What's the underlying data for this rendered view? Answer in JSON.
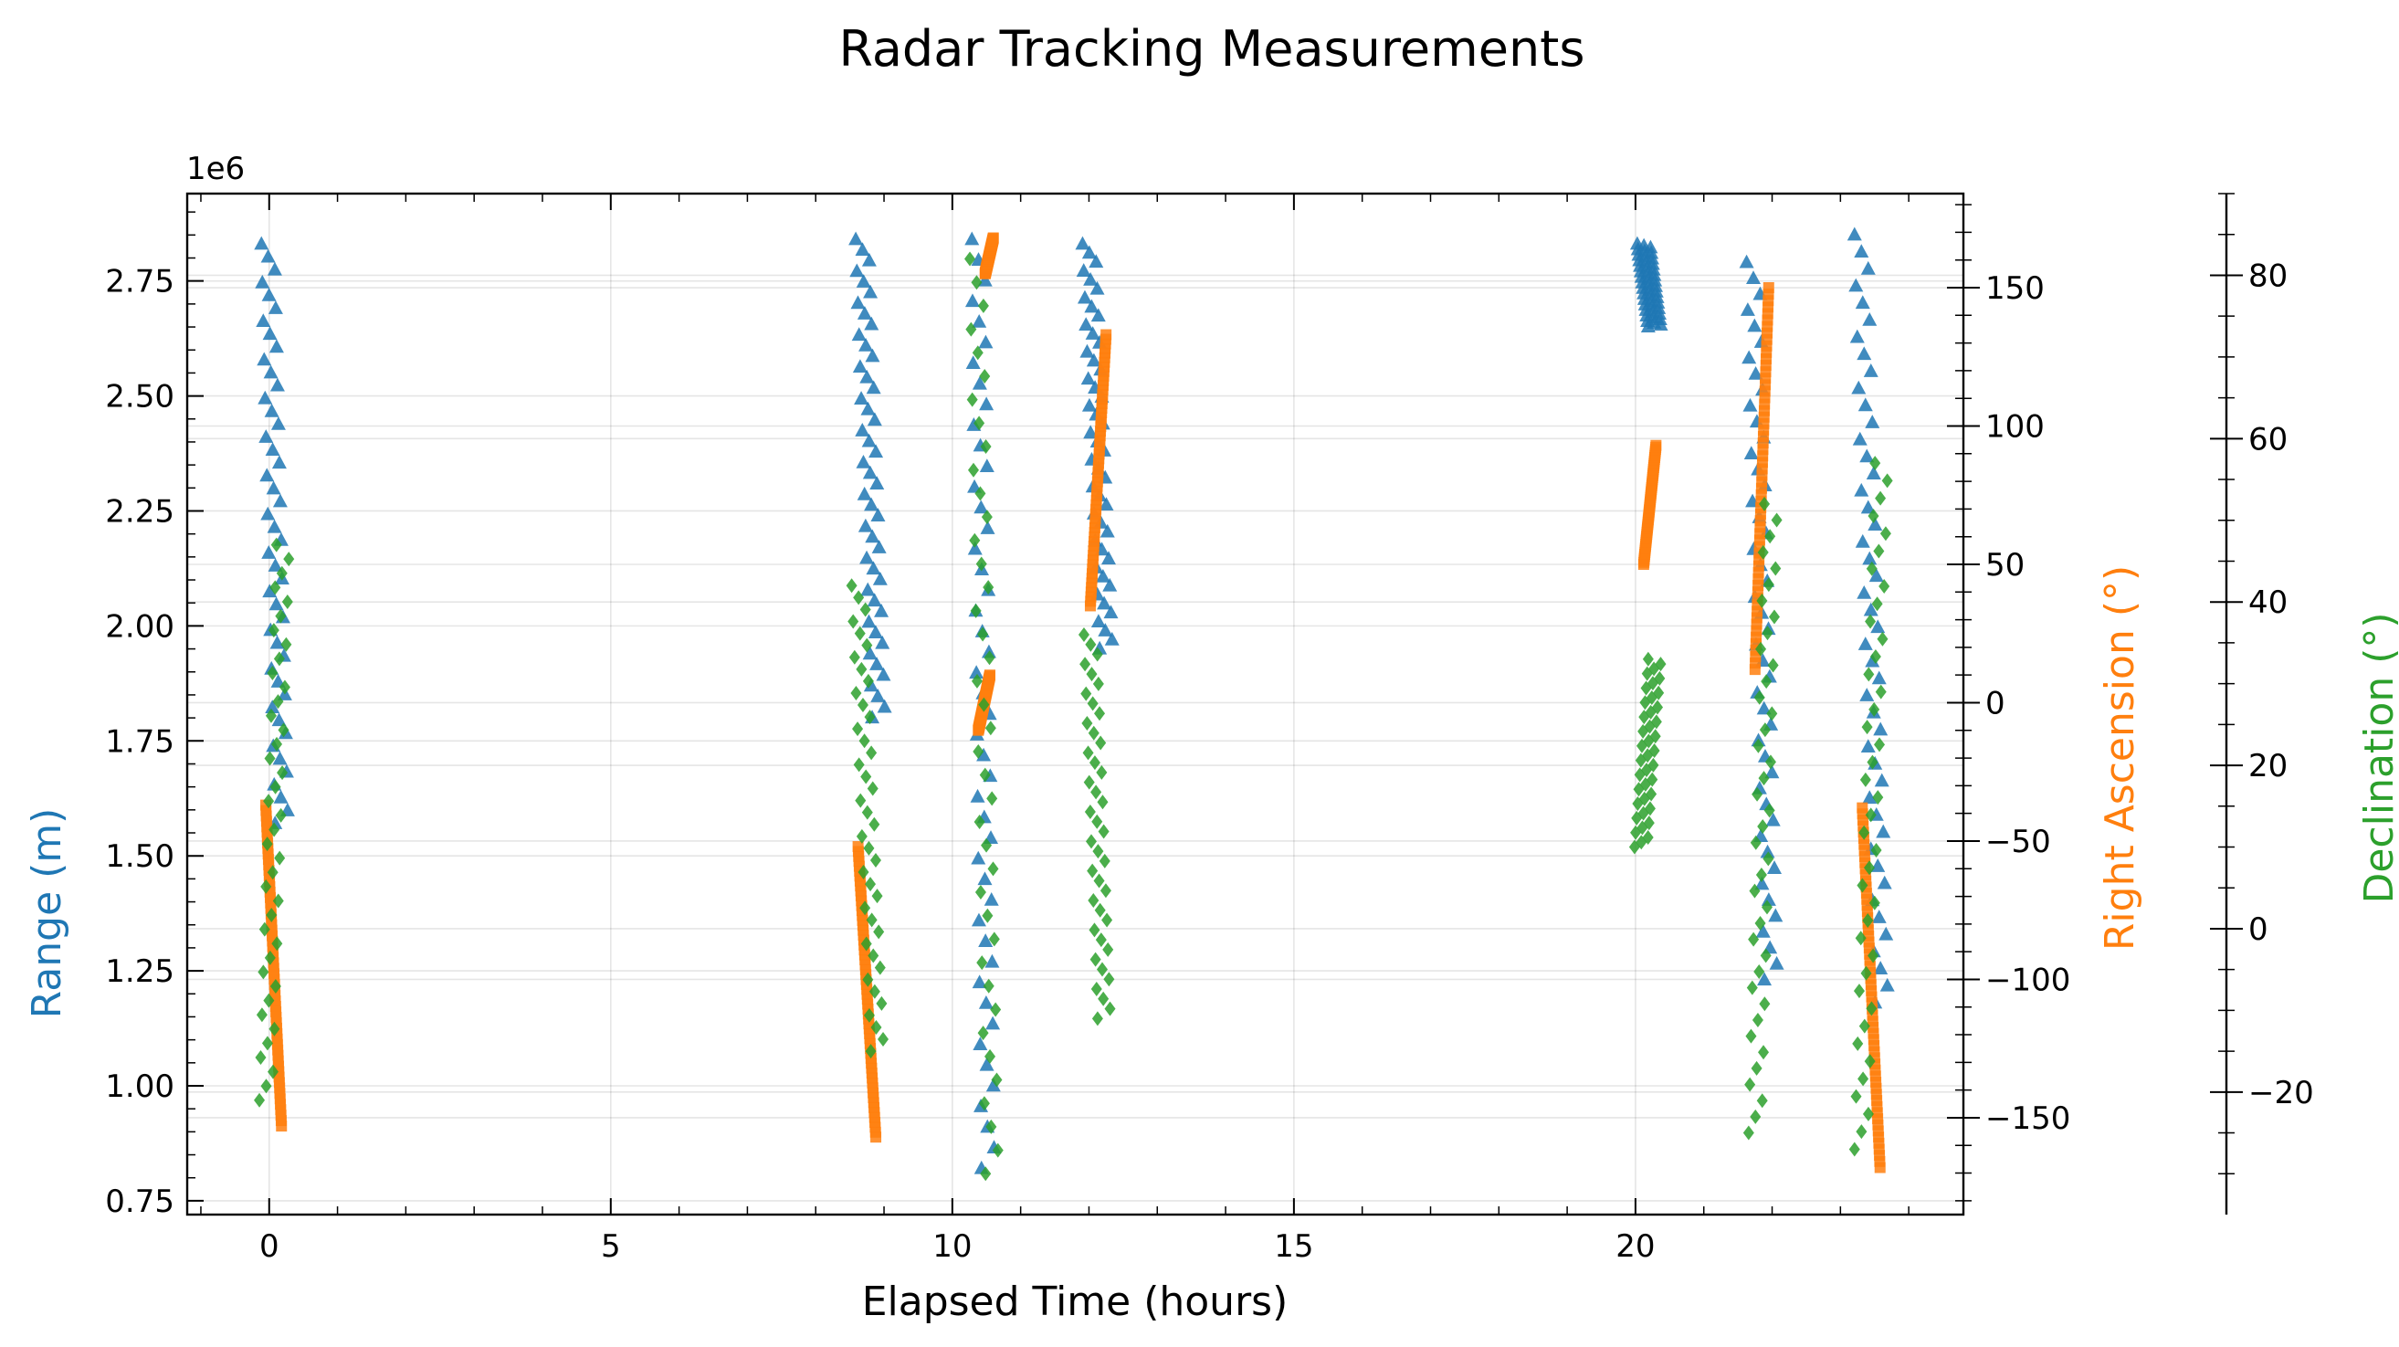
{
  "chart_data": {
    "type": "scatter",
    "title": "Radar Tracking Measurements",
    "xlabel": "Elapsed Time (hours)",
    "xlim": [
      -1.2,
      24.8
    ],
    "x_ticks": [
      "0",
      "5",
      "10",
      "15",
      "20"
    ],
    "x_tick_values": [
      0,
      5,
      10,
      15,
      20
    ],
    "grid": true,
    "axes": {
      "range": {
        "label": "Range (m)",
        "color": "#1f77b4",
        "offset_text": "1e6",
        "lim": [
          0.72,
          2.94
        ],
        "ticks": [
          "0.75",
          "1.00",
          "1.25",
          "1.50",
          "1.75",
          "2.00",
          "2.25",
          "2.50",
          "2.75"
        ],
        "tick_values": [
          0.75,
          1.0,
          1.25,
          1.5,
          1.75,
          2.0,
          2.25,
          2.5,
          2.75
        ]
      },
      "ra": {
        "label": "Right Ascension (°)",
        "color": "#ff7f0e",
        "lim": [
          -185,
          184
        ],
        "ticks": [
          "−150",
          "−100",
          "−50",
          "0",
          "50",
          "100",
          "150"
        ],
        "tick_values": [
          -150,
          -100,
          -50,
          0,
          50,
          100,
          150
        ]
      },
      "dec": {
        "label": "Declination (°)",
        "color": "#2ca02c",
        "lim": [
          -35,
          90
        ],
        "ticks": [
          "−20",
          "0",
          "20",
          "40",
          "60",
          "80"
        ],
        "tick_values": [
          -20,
          0,
          20,
          40,
          60,
          80
        ]
      }
    },
    "series": [
      {
        "axis": "range",
        "marker": "triangle",
        "color": "#1f77b4",
        "n": 46,
        "segments": [
          {
            "x": [
              -0.02,
              0.18
            ],
            "y": [
              2.83,
              1.57
            ]
          },
          {
            "x": [
              8.68,
              8.92
            ],
            "y": [
              2.84,
              1.8
            ]
          },
          {
            "x": [
              10.38,
              10.52
            ],
            "y": [
              2.84,
              0.82
            ]
          },
          {
            "x": [
              12.0,
              12.25
            ],
            "y": [
              2.83,
              1.95
            ]
          },
          {
            "x": [
              20.12,
              20.28
            ],
            "y": [
              2.83,
              2.65
            ]
          },
          {
            "x": [
              21.72,
              21.98
            ],
            "y": [
              2.79,
              1.23
            ]
          },
          {
            "x": [
              23.3,
              23.6
            ],
            "y": [
              2.85,
              1.18
            ]
          }
        ]
      },
      {
        "axis": "ra",
        "marker": "square",
        "color": "#ff7f0e",
        "n": 60,
        "segments": [
          {
            "x": [
              -0.05,
              0.18
            ],
            "y": [
              -37,
              -153
            ]
          },
          {
            "x": [
              8.62,
              8.88
            ],
            "y": [
              -52,
              -157
            ]
          },
          {
            "x": [
              10.38,
              10.55
            ],
            "y": [
              -10,
              10
            ]
          },
          {
            "x": [
              10.48,
              10.6
            ],
            "y": [
              155,
              168
            ]
          },
          {
            "x": [
              12.02,
              12.25
            ],
            "y": [
              35,
              133
            ]
          },
          {
            "x": [
              20.12,
              20.3
            ],
            "y": [
              50,
              93
            ]
          },
          {
            "x": [
              21.75,
              21.95
            ],
            "y": [
              12,
              150
            ]
          },
          {
            "x": [
              23.32,
              23.58
            ],
            "y": [
              -38,
              -168
            ]
          }
        ]
      },
      {
        "axis": "dec",
        "marker": "diamond",
        "color": "#2ca02c",
        "n": 40,
        "segments": [
          {
            "x": [
              -0.05,
              0.2
            ],
            "y": [
              -21,
              47
            ]
          },
          {
            "x": [
              8.62,
              8.9
            ],
            "y": [
              42,
              -15
            ]
          },
          {
            "x": [
              10.35,
              10.58
            ],
            "y": [
              82,
              -30
            ]
          },
          {
            "x": [
              12.02,
              12.22
            ],
            "y": [
              36,
              -11
            ]
          },
          {
            "x": [
              20.08,
              20.28
            ],
            "y": [
              10,
              33
            ]
          },
          {
            "x": [
              21.75,
              21.98
            ],
            "y": [
              -25,
              52
            ]
          },
          {
            "x": [
              23.3,
              23.6
            ],
            "y": [
              -27,
              57
            ]
          }
        ]
      }
    ]
  }
}
